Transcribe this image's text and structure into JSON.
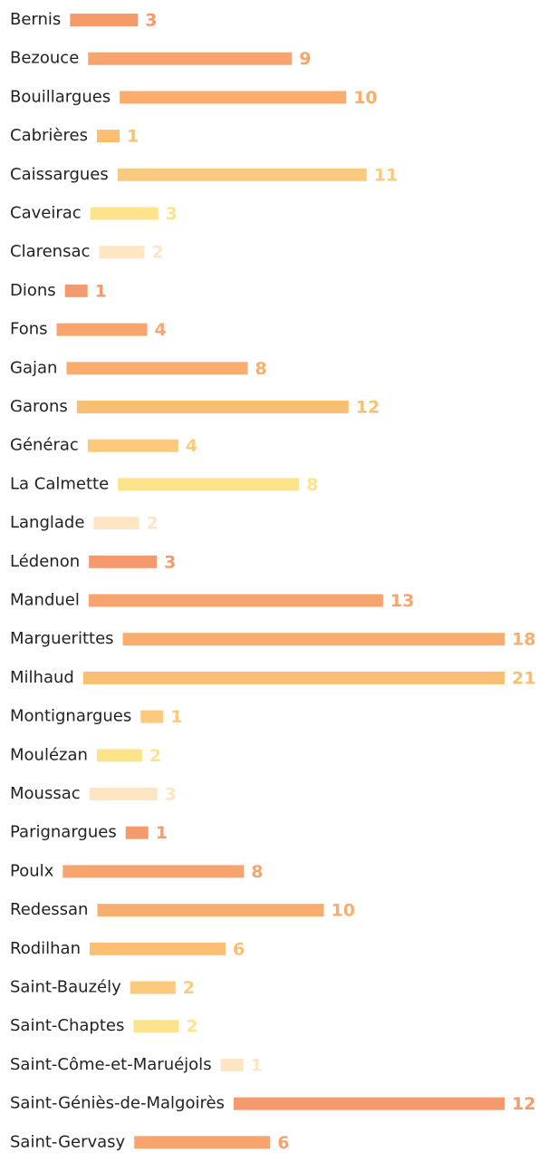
{
  "chart_data": {
    "type": "bar",
    "orientation": "horizontal",
    "categories": [
      "Bernis",
      "Bezouce",
      "Bouillargues",
      "Cabrières",
      "Caissargues",
      "Caveirac",
      "Clarensac",
      "Dions",
      "Fons",
      "Gajan",
      "Garons",
      "Générac",
      "La Calmette",
      "Langlade",
      "Lédenon",
      "Manduel",
      "Marguerittes",
      "Milhaud",
      "Montignargues",
      "Moulézan",
      "Moussac",
      "Parignargues",
      "Poulx",
      "Redessan",
      "Rodilhan",
      "Saint-Bauzély",
      "Saint-Chaptes",
      "Saint-Côme-et-Maruéjols",
      "Saint-Géniès-de-Malgoirès",
      "Saint-Gervasy"
    ],
    "values": [
      3,
      9,
      10,
      1,
      11,
      3,
      2,
      1,
      4,
      8,
      12,
      4,
      8,
      2,
      3,
      13,
      18,
      21,
      1,
      2,
      3,
      1,
      8,
      10,
      6,
      2,
      2,
      1,
      12,
      6
    ],
    "colors": [
      "#f59a6c",
      "#f7a46e",
      "#f9ae6e",
      "#fbbf73",
      "#fcca7c",
      "#fde48c",
      "#fee5c4"
    ]
  }
}
